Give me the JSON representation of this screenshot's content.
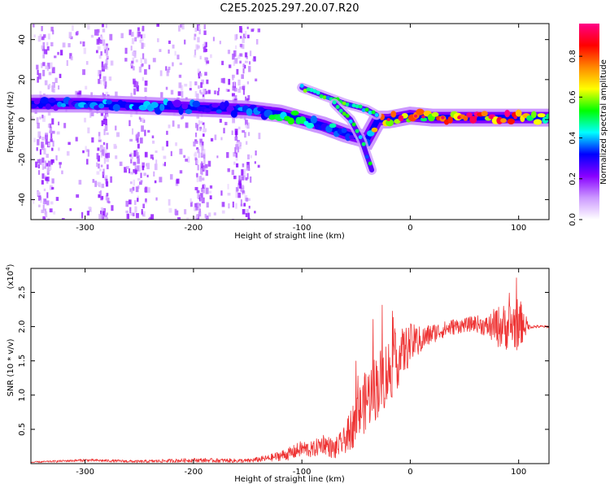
{
  "chart_data": [
    {
      "type": "heatmap",
      "title": "C2E5.2025.297.20.07.R20",
      "xlabel": "Height of straight line (km)",
      "ylabel": "Frequency (Hz)",
      "xlim": [
        -350,
        128
      ],
      "ylim": [
        -50,
        48
      ],
      "xticks": [
        -300,
        -200,
        -100,
        0,
        100
      ],
      "xtick_labels": [
        "-300",
        "-200",
        "-100",
        "0",
        "100"
      ],
      "yticks": [
        -40,
        -20,
        0,
        20,
        40
      ],
      "ytick_labels": [
        "-40",
        "-20",
        "0",
        "20",
        "40"
      ],
      "colorbar": {
        "label": "Normalized spectral amplitude",
        "range": [
          0.0,
          0.96
        ],
        "ticks": [
          0.0,
          0.2,
          0.4,
          0.6,
          0.8
        ],
        "tick_labels": [
          "0.0",
          "0.2",
          "0.4",
          "0.6",
          "0.8"
        ],
        "colormap": [
          "#ffffff",
          "#cc99ff",
          "#8800ff",
          "#0000ff",
          "#00ffff",
          "#00ff00",
          "#ffff00",
          "#ff8800",
          "#ff0000",
          "#ff0088"
        ]
      },
      "main_trace": {
        "x": [
          -350,
          -300,
          -250,
          -200,
          -150,
          -120,
          -100,
          -80,
          -60,
          -40,
          -30,
          -20,
          -10,
          0,
          20,
          60,
          100,
          128
        ],
        "frequency": [
          8,
          8,
          7,
          6,
          5,
          3,
          0,
          -3,
          -7,
          -10,
          0,
          0,
          1,
          2,
          1,
          1,
          1,
          1
        ],
        "amplitude": [
          0.35,
          0.4,
          0.4,
          0.35,
          0.4,
          0.5,
          0.5,
          0.45,
          0.4,
          0.35,
          0.9,
          0.85,
          0.9,
          0.85,
          0.8,
          0.9,
          0.9,
          0.5
        ]
      },
      "branch_traces": [
        {
          "name": "upper branch",
          "x": [
            -100,
            -80,
            -60,
            -40,
            -30
          ],
          "frequency": [
            16,
            12,
            8,
            5,
            2
          ]
        },
        {
          "name": "lower branch",
          "x": [
            -70,
            -55,
            -45,
            -40,
            -35
          ],
          "frequency": [
            8,
            0,
            -10,
            -18,
            -26
          ]
        }
      ]
    },
    {
      "type": "line",
      "title": "",
      "xlabel": "Height of straight line (km)",
      "ylabel": "SNR (10 * v/v)",
      "y_multiplier": "(x10",
      "y_multiplier_exp": "4",
      "y_multiplier_close": ")",
      "xlim": [
        -350,
        128
      ],
      "ylim": [
        0,
        2.85
      ],
      "xticks": [
        -300,
        -200,
        -100,
        0,
        100
      ],
      "xtick_labels": [
        "-300",
        "-200",
        "-100",
        "0",
        "100"
      ],
      "yticks": [
        0.5,
        1.0,
        1.5,
        2.0,
        2.5
      ],
      "ytick_labels": [
        "0.5",
        "1.0",
        "1.5",
        "2.0",
        "2.5"
      ],
      "series": [
        {
          "name": "SNR",
          "color": "#ee3333",
          "x": [
            -350,
            -300,
            -250,
            -200,
            -150,
            -130,
            -110,
            -100,
            -90,
            -80,
            -70,
            -60,
            -50,
            -40,
            -30,
            -20,
            -10,
            0,
            10,
            20,
            30,
            40,
            50,
            60,
            70,
            80,
            90,
            100,
            110,
            120,
            128
          ],
          "y": [
            0.02,
            0.05,
            0.03,
            0.05,
            0.04,
            0.08,
            0.15,
            0.22,
            0.2,
            0.3,
            0.2,
            0.35,
            0.65,
            0.95,
            1.15,
            1.35,
            1.55,
            1.75,
            1.8,
            1.9,
            1.95,
            2.0,
            2.02,
            2.05,
            2.0,
            2.0,
            2.0,
            2.05,
            2.0,
            2.0,
            2.0
          ],
          "noise": [
            0.01,
            0.02,
            0.02,
            0.03,
            0.03,
            0.05,
            0.1,
            0.12,
            0.12,
            0.15,
            0.15,
            0.2,
            0.4,
            0.45,
            0.5,
            0.5,
            0.4,
            0.3,
            0.2,
            0.15,
            0.12,
            0.12,
            0.1,
            0.12,
            0.15,
            0.3,
            0.35,
            0.4,
            0.03,
            0.02,
            0.02
          ]
        }
      ]
    }
  ]
}
